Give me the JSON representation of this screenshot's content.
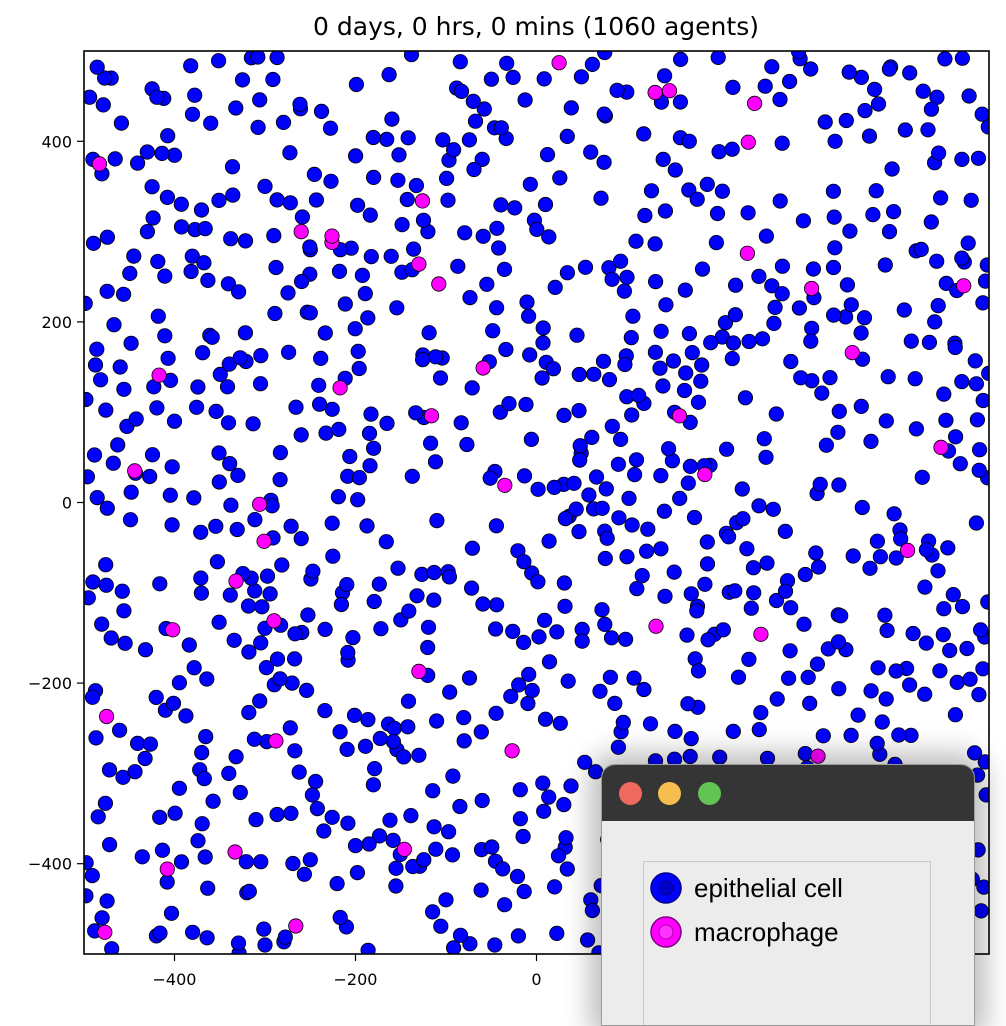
{
  "chart_data": {
    "type": "scatter",
    "title": "0 days, 0 hrs, 0 mins (1060 agents)",
    "xlabel": "",
    "ylabel": "",
    "xlim": [
      -500,
      500
    ],
    "ylim": [
      -500,
      500
    ],
    "x_ticks": [
      -400,
      -200,
      0
    ],
    "y_ticks": [
      400,
      200,
      0,
      -200,
      -400
    ],
    "grid": false,
    "legend_placement": "bottom-right",
    "series": [
      {
        "name": "epithelial cell",
        "color": "#0000ff",
        "edge_color": "#000000",
        "count_note": "approximately 1020 points spread uniformly across the domain",
        "sample_points": [
          [
            -470,
            470
          ],
          [
            -490,
            380
          ],
          [
            -430,
            300
          ],
          [
            -360,
            420
          ],
          [
            -300,
            350
          ],
          [
            -250,
            280
          ],
          [
            -180,
            360
          ],
          [
            -120,
            300
          ],
          [
            -60,
            380
          ],
          [
            10,
            330
          ],
          [
            80,
            260
          ],
          [
            140,
            380
          ],
          [
            200,
            320
          ],
          [
            260,
            240
          ],
          [
            330,
            400
          ],
          [
            390,
            300
          ],
          [
            440,
            200
          ],
          [
            470,
            380
          ],
          [
            -460,
            150
          ],
          [
            -400,
            90
          ],
          [
            -330,
            30
          ],
          [
            -260,
            -40
          ],
          [
            -180,
            60
          ],
          [
            -110,
            -20
          ],
          [
            -40,
            100
          ],
          [
            30,
            20
          ],
          [
            100,
            -60
          ],
          [
            170,
            40
          ],
          [
            240,
            -100
          ],
          [
            310,
            10
          ],
          [
            380,
            -60
          ],
          [
            450,
            120
          ],
          [
            -470,
            -150
          ],
          [
            -410,
            -230
          ],
          [
            -340,
            -300
          ],
          [
            -270,
            -200
          ],
          [
            -200,
            -380
          ],
          [
            -130,
            -280
          ],
          [
            -60,
            -330
          ],
          [
            10,
            -240
          ],
          [
            60,
            -440
          ],
          [
            -480,
            -460
          ],
          [
            -420,
            -480
          ],
          [
            -300,
            -490
          ],
          [
            -210,
            -470
          ],
          [
            -100,
            -440
          ],
          [
            -20,
            -480
          ],
          [
            -150,
            -130
          ]
        ]
      },
      {
        "name": "macrophage",
        "color": "#ff00ff",
        "edge_color": "#000000",
        "points": [
          [
            -483,
            375
          ],
          [
            -417,
            141
          ],
          [
            -444,
            35
          ],
          [
            -402,
            -141
          ],
          [
            -475,
            -237
          ],
          [
            -477,
            -476
          ],
          [
            -408,
            -406
          ],
          [
            -333,
            -387
          ],
          [
            -332,
            -87
          ],
          [
            -306,
            -2
          ],
          [
            -301,
            -43
          ],
          [
            -290,
            -131
          ],
          [
            -288,
            -264
          ],
          [
            -266,
            -469
          ],
          [
            -260,
            300
          ],
          [
            -226,
            288
          ],
          [
            -226,
            295
          ],
          [
            -217,
            127
          ],
          [
            -126,
            334
          ],
          [
            -130,
            264
          ],
          [
            -108,
            242
          ],
          [
            -116,
            96
          ],
          [
            -130,
            -187
          ],
          [
            -146,
            -384
          ],
          [
            -59,
            149
          ],
          [
            -35,
            19
          ],
          [
            -27,
            -275
          ],
          [
            25,
            487
          ],
          [
            131,
            454
          ],
          [
            147,
            456
          ],
          [
            158,
            96
          ],
          [
            186,
            31
          ],
          [
            132,
            -137
          ],
          [
            234,
            399
          ],
          [
            241,
            442
          ],
          [
            233,
            276
          ],
          [
            304,
            237
          ],
          [
            349,
            166
          ],
          [
            447,
            61
          ],
          [
            410,
            -53
          ],
          [
            472,
            240
          ],
          [
            248,
            -146
          ],
          [
            311,
            -281
          ]
        ]
      }
    ]
  },
  "legend_window": {
    "entries": [
      {
        "label": "epithelial cell",
        "color": "#0000ff",
        "edge_color": "#00008b"
      },
      {
        "label": "macrophage",
        "color": "#ff00ff",
        "edge_color": "#800080"
      }
    ]
  }
}
